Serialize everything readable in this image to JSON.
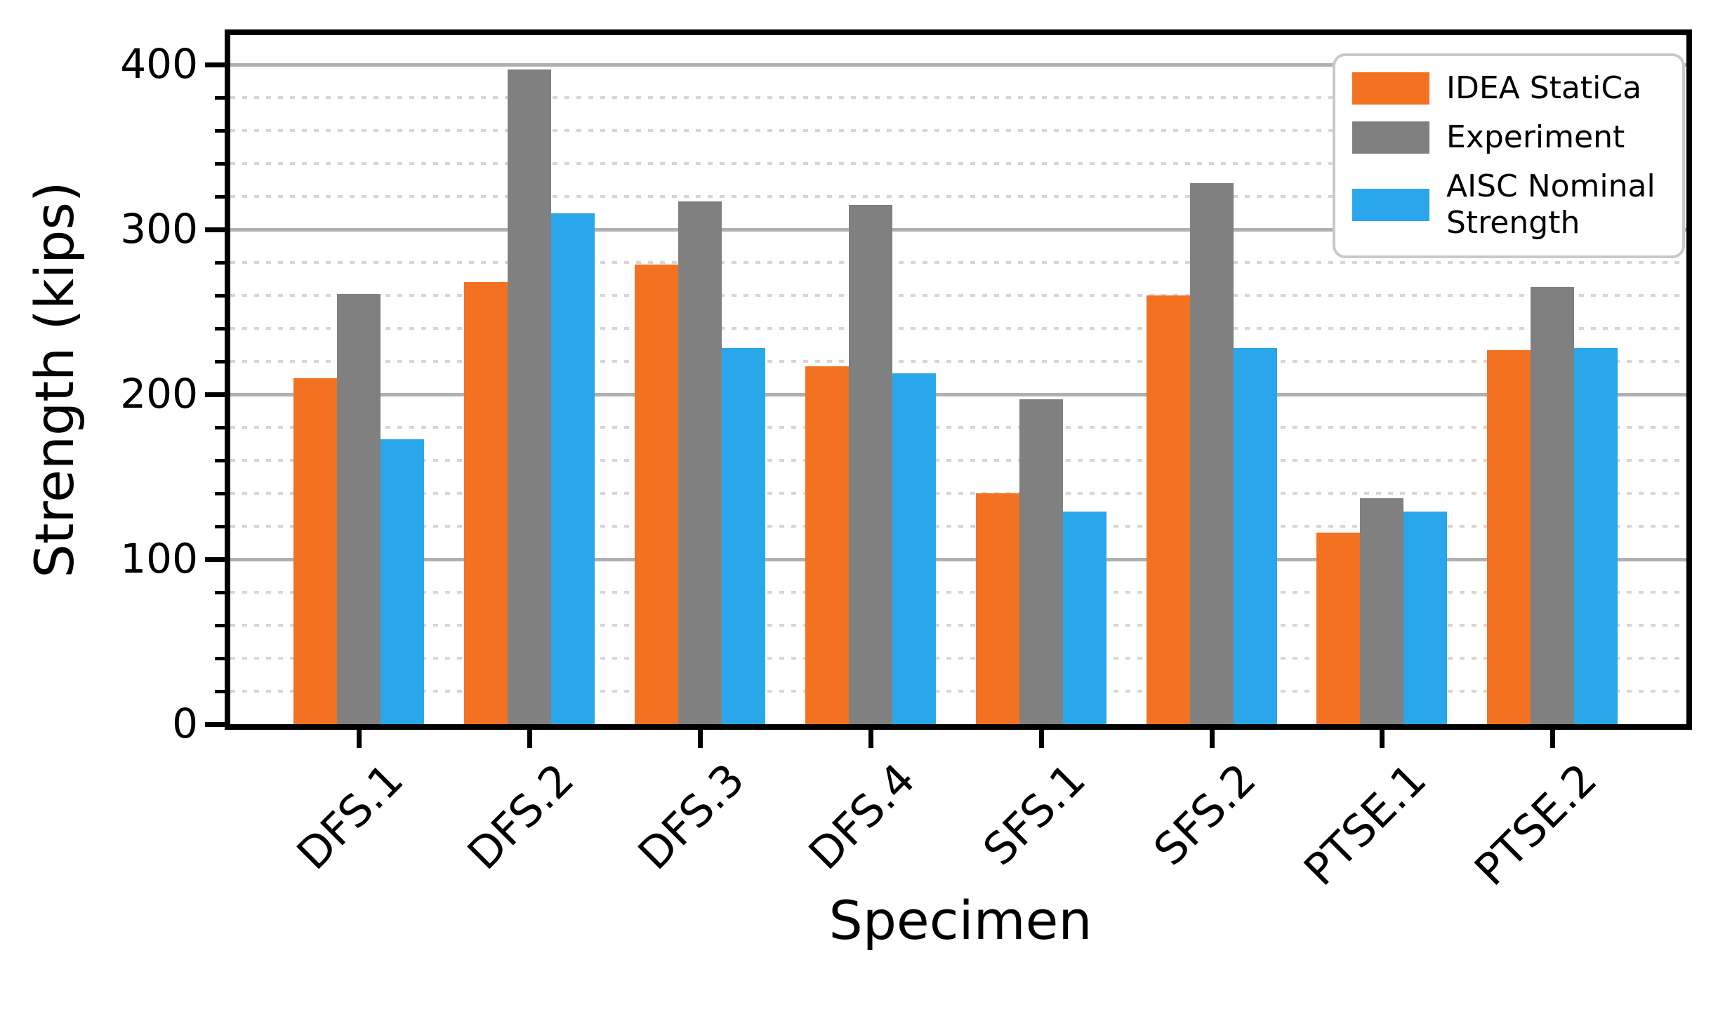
{
  "chart_data": {
    "type": "bar",
    "title": "",
    "xlabel": "Specimen",
    "ylabel": "Strength (kips)",
    "ylim": [
      0,
      418
    ],
    "yticks": [
      0,
      100,
      200,
      300,
      400
    ],
    "ytick_labels": [
      "0",
      "100",
      "200",
      "300",
      "400"
    ],
    "minor_tick_step": 20,
    "grid": {
      "major": "solid",
      "minor": "dotted",
      "major_color": "#b0b0b0",
      "minor_color": "#d6d6d6"
    },
    "legend_position": "upper right",
    "categories": [
      "DFS.1",
      "DFS.2",
      "DFS.3",
      "DFS.4",
      "SFS.1",
      "SFS.2",
      "PTSE.1",
      "PTSE.2"
    ],
    "series": [
      {
        "name": "IDEA StatiCa",
        "color": "#F37221",
        "values": [
          210,
          268,
          279,
          217,
          140,
          260,
          116,
          227
        ]
      },
      {
        "name": "Experiment",
        "color": "#808080",
        "values": [
          261,
          397,
          317,
          315,
          197,
          328,
          137,
          265
        ]
      },
      {
        "name": "AISC Nominal Strength",
        "color": "#29A7EA",
        "values": [
          173,
          310,
          228,
          213,
          129,
          228,
          129,
          228
        ]
      }
    ]
  },
  "legend": {
    "items": [
      {
        "label": "IDEA StatiCa",
        "color": "#F37221"
      },
      {
        "label": "Experiment",
        "color": "#808080"
      },
      {
        "label": "AISC Nominal Strength",
        "color": "#29A7EA"
      }
    ]
  }
}
